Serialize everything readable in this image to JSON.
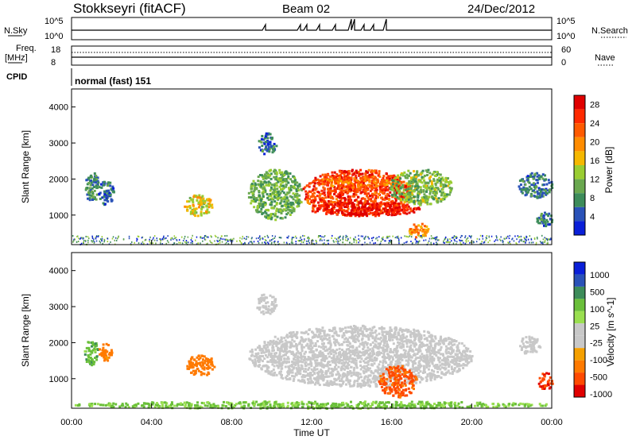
{
  "header": {
    "station": "Stokkseyri (fitACF)",
    "beam": "Beam 02",
    "date": "24/Dec/2012"
  },
  "top_panels": {
    "nsky": {
      "label": "N.Sky",
      "tick_top": "10^5",
      "tick_bottom": "10^0"
    },
    "nsearch": {
      "label": "N.Search",
      "tick_top": "10^5",
      "tick_bottom": "10^0"
    },
    "freq": {
      "label_line1": "Freq.",
      "label_line2": "[MHz]",
      "tick_top": "18",
      "tick_bottom": "8"
    },
    "nave": {
      "label": "Nave",
      "tick_top": "60",
      "tick_bottom": "0"
    },
    "cpid": {
      "label": "CPID",
      "value": "normal (fast) 151"
    }
  },
  "colors": {
    "power_scale": [
      "#0a1fd8",
      "#2a52b8",
      "#3d8c5a",
      "#6aa84f",
      "#9acd32",
      "#f5b800",
      "#ff8c00",
      "#ff5a00",
      "#ff2a00",
      "#e00000"
    ],
    "velocity_scale": [
      "#0a1fd8",
      "#2a52b8",
      "#3d8c5a",
      "#6abf3a",
      "#9adf50",
      "#c8c8c8",
      "#c8c8c8",
      "#f5a000",
      "#ff7a00",
      "#ff4a00",
      "#e00000"
    ],
    "gray": "#c8c8c8"
  },
  "chart_data": [
    {
      "type": "heatmap",
      "title": "Power",
      "ylabel": "Slant Range [km]",
      "colorbar_label": "Power [dB]",
      "colorbar_ticks": [
        "4",
        "8",
        "12",
        "16",
        "20",
        "24",
        "28"
      ],
      "xlim": [
        "00:00",
        "24:00"
      ],
      "ylim": [
        180,
        4500
      ],
      "yticks": [
        "1000",
        "2000",
        "3000",
        "4000"
      ],
      "patches": [
        {
          "t0": 0.6,
          "t1": 1.4,
          "r0": 1400,
          "r1": 2200,
          "value": 9
        },
        {
          "t0": 1.3,
          "t1": 2.1,
          "r0": 1300,
          "r1": 2000,
          "value": 7
        },
        {
          "t0": 5.6,
          "t1": 7.0,
          "r0": 1000,
          "r1": 1600,
          "value": 16
        },
        {
          "t0": 8.8,
          "t1": 11.5,
          "r0": 900,
          "r1": 2300,
          "value": 12
        },
        {
          "t0": 9.3,
          "t1": 10.2,
          "r0": 2700,
          "r1": 3300,
          "value": 7
        },
        {
          "t0": 11.5,
          "t1": 17.0,
          "r0": 1000,
          "r1": 2300,
          "value": 25
        },
        {
          "t0": 11.8,
          "t1": 17.4,
          "r0": 1000,
          "r1": 1400,
          "value": 28
        },
        {
          "t0": 12.2,
          "t1": 16.5,
          "r0": 1800,
          "r1": 2100,
          "value": 22
        },
        {
          "t0": 15.8,
          "t1": 19.0,
          "r0": 1300,
          "r1": 2300,
          "value": 13
        },
        {
          "t0": 16.8,
          "t1": 17.8,
          "r0": 400,
          "r1": 800,
          "value": 20
        },
        {
          "t0": 22.3,
          "t1": 24.0,
          "r0": 1500,
          "r1": 2200,
          "value": 8
        },
        {
          "t0": 23.2,
          "t1": 24.0,
          "r0": 700,
          "r1": 1100,
          "value": 7
        }
      ]
    },
    {
      "type": "heatmap",
      "title": "Velocity",
      "ylabel": "Slant Range [km]",
      "xlabel": "Time UT",
      "colorbar_label": "Velocity [m s^-1]",
      "colorbar_ticks": [
        "1000",
        "500",
        "100",
        "25",
        "-25",
        "-100",
        "-500",
        "-1000"
      ],
      "xlim": [
        "00:00",
        "24:00"
      ],
      "xticks": [
        "00:00",
        "04:00",
        "08:00",
        "12:00",
        "16:00",
        "20:00",
        "00:00"
      ],
      "ylim": [
        180,
        4500
      ],
      "yticks": [
        "1000",
        "2000",
        "3000",
        "4000"
      ],
      "patches": [
        {
          "t0": 0.6,
          "t1": 1.3,
          "r0": 1400,
          "r1": 2100,
          "value": 80
        },
        {
          "t0": 1.3,
          "t1": 2.0,
          "r0": 1500,
          "r1": 2000,
          "value": -150
        },
        {
          "t0": 5.7,
          "t1": 7.1,
          "r0": 1100,
          "r1": 1700,
          "value": -200
        },
        {
          "t0": 8.8,
          "t1": 20.0,
          "r0": 800,
          "r1": 2500,
          "value": 0
        },
        {
          "t0": 9.2,
          "t1": 10.2,
          "r0": 2800,
          "r1": 3400,
          "value": 0
        },
        {
          "t0": 15.3,
          "t1": 17.2,
          "r0": 500,
          "r1": 1400,
          "value": -600
        },
        {
          "t0": 22.3,
          "t1": 23.4,
          "r0": 1700,
          "r1": 2200,
          "value": 0
        },
        {
          "t0": 23.3,
          "t1": 24.0,
          "r0": 700,
          "r1": 1200,
          "value": -700
        },
        {
          "t0": 0.0,
          "t1": 24.0,
          "r0": 200,
          "r1": 400,
          "value": 60
        }
      ]
    }
  ]
}
